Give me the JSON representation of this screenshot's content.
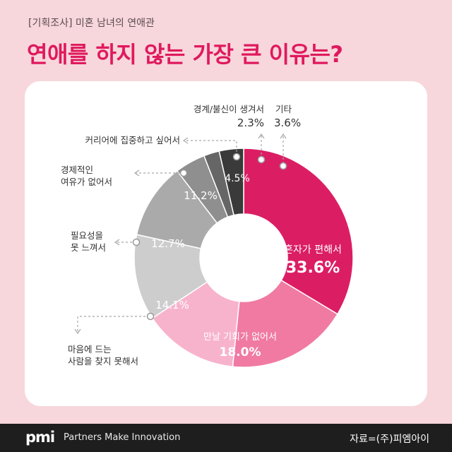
{
  "header": {
    "kicker": "[기획조사] 미혼 남녀의 연애관",
    "title": "연애를 하지 않는 가장 큰 이유는?"
  },
  "footer": {
    "logo": "pmi",
    "tagline": "Partners Make Innovation",
    "source": "자료=(주)피엠아이"
  },
  "chart_data": {
    "type": "pie",
    "donut": true,
    "start_angle_deg": 0,
    "direction": "clockwise",
    "slices": [
      {
        "label": "혼자가 편해서",
        "value": 33.6,
        "value_text": "33.6%",
        "color": "#db1e64"
      },
      {
        "label": "만날 기회가 없어서",
        "value": 18.0,
        "value_text": "18.0%",
        "color": "#f07aa2"
      },
      {
        "label": "마음에 드는 사람을 찾지 못해서",
        "value": 14.1,
        "value_text": "14.1%",
        "color": "#f8b3cc"
      },
      {
        "label": "필요성을 못 느껴서",
        "value": 12.7,
        "value_text": "12.7%",
        "color": "#cdcdcd"
      },
      {
        "label": "경제적인 여유가 없어서",
        "value": 11.2,
        "value_text": "11.2%",
        "color": "#aaaaaa"
      },
      {
        "label": "커리어에 집중하고 싶어서",
        "value": 4.5,
        "value_text": "4.5%",
        "color": "#8f8f8f"
      },
      {
        "label": "경계/불신이 생겨서",
        "value": 2.3,
        "value_text": "2.3%",
        "color": "#666666"
      },
      {
        "label": "기타",
        "value": 3.6,
        "value_text": "3.6%",
        "color": "#3a3a3a"
      }
    ]
  }
}
